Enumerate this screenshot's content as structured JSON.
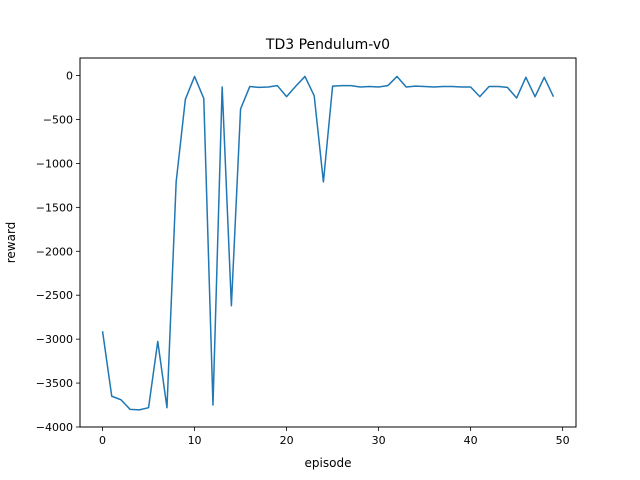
{
  "chart_data": {
    "type": "line",
    "title": "TD3 Pendulum-v0",
    "xlabel": "episode",
    "ylabel": "reward",
    "xlim": [
      -2.45,
      51.45
    ],
    "ylim": [
      -4000,
      200
    ],
    "xticks": [
      0,
      10,
      20,
      30,
      40,
      50
    ],
    "yticks": [
      0,
      -500,
      -1000,
      -1500,
      -2000,
      -2500,
      -3000,
      -3500,
      -4000
    ],
    "xtick_labels": [
      "0",
      "10",
      "20",
      "30",
      "40",
      "50"
    ],
    "ytick_labels": [
      "0",
      "−500",
      "−1000",
      "−1500",
      "−2000",
      "−2500",
      "−3000",
      "−3500",
      "−4000"
    ],
    "grid": false,
    "line_color": "#1f77b4",
    "series": [
      {
        "x": [
          0,
          1,
          2,
          3,
          4,
          5,
          6,
          7,
          8,
          9,
          10,
          11,
          12,
          13,
          14,
          15,
          16,
          17,
          18,
          19,
          20,
          21,
          22,
          23,
          24,
          25,
          26,
          27,
          28,
          29,
          30,
          31,
          32,
          33,
          34,
          35,
          36,
          37,
          38,
          39,
          40,
          41,
          42,
          43,
          44,
          45,
          46,
          47,
          48,
          49
        ],
        "values": [
          -2910,
          -3650,
          -3690,
          -3800,
          -3805,
          -3780,
          -3025,
          -3780,
          -1210,
          -270,
          -10,
          -260,
          -3750,
          -130,
          -2620,
          -380,
          -125,
          -135,
          -130,
          -115,
          -240,
          -120,
          -10,
          -230,
          -1210,
          -120,
          -115,
          -115,
          -130,
          -125,
          -130,
          -115,
          -10,
          -130,
          -120,
          -125,
          -130,
          -125,
          -125,
          -130,
          -130,
          -240,
          -125,
          -125,
          -135,
          -255,
          -20,
          -240,
          -20,
          -240
        ]
      }
    ]
  }
}
